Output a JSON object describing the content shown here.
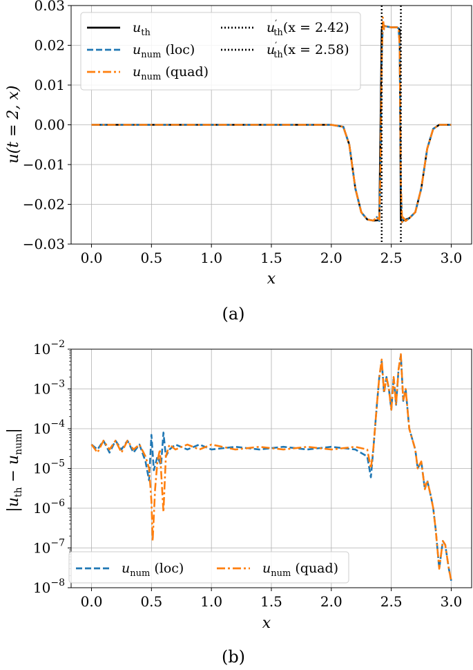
{
  "colors": {
    "th": "#000000",
    "loc": "#1f77b4",
    "quad": "#ff7f0e",
    "ref": "#000000"
  },
  "chart_data": [
    {
      "type": "line",
      "caption": "(a)",
      "xlabel": "x",
      "ylabel": "u(t = 2, x)",
      "xlim": [
        -0.17,
        3.17
      ],
      "ylim": [
        -0.03,
        0.03
      ],
      "xticks": [
        "0.0",
        "0.5",
        "1.0",
        "1.5",
        "2.0",
        "2.5",
        "3.0"
      ],
      "xtick_values": [
        0,
        0.5,
        1,
        1.5,
        2,
        2.5,
        3
      ],
      "yticks": [
        "0.03",
        "0.02",
        "0.01",
        "0.00",
        "−0.01",
        "−0.02",
        "−0.03"
      ],
      "ytick_values": [
        0.03,
        0.02,
        0.01,
        0,
        -0.01,
        -0.02,
        -0.03
      ],
      "grid": true,
      "legend_position": "top-left",
      "series": [
        {
          "name": "u_th",
          "label_main": "u",
          "label_sub": "th",
          "label_suffix": "",
          "style": "solid",
          "color_key": "th",
          "x": [
            0,
            0.5,
            1.0,
            1.5,
            2.0,
            2.1,
            2.15,
            2.2,
            2.25,
            2.3,
            2.35,
            2.4,
            2.42,
            2.43,
            2.45,
            2.5,
            2.55,
            2.57,
            2.58,
            2.6,
            2.65,
            2.7,
            2.75,
            2.8,
            2.85,
            2.9,
            3.0
          ],
          "y": [
            0,
            0,
            0,
            0,
            0,
            -0.0005,
            -0.005,
            -0.016,
            -0.022,
            -0.0238,
            -0.0241,
            -0.024,
            0.024,
            0.025,
            0.0248,
            0.0245,
            0.0245,
            0.024,
            -0.024,
            -0.0241,
            -0.0235,
            -0.022,
            -0.016,
            -0.006,
            -0.001,
            0,
            0
          ]
        },
        {
          "name": "u_num (loc)",
          "label_main": "u",
          "label_sub": "num",
          "label_suffix": " (loc)",
          "style": "dashed",
          "color_key": "loc",
          "x": [
            0,
            0.5,
            1.0,
            1.5,
            2.0,
            2.1,
            2.15,
            2.2,
            2.25,
            2.3,
            2.35,
            2.38,
            2.4,
            2.41,
            2.42,
            2.43,
            2.44,
            2.45,
            2.5,
            2.55,
            2.56,
            2.57,
            2.58,
            2.59,
            2.6,
            2.62,
            2.65,
            2.7,
            2.75,
            2.8,
            2.85,
            2.9,
            3.0
          ],
          "y": [
            0,
            0,
            0,
            0,
            0,
            -0.0005,
            -0.005,
            -0.016,
            -0.022,
            -0.0238,
            -0.0241,
            -0.0232,
            -0.0242,
            -0.012,
            0.016,
            0.026,
            0.024,
            0.0248,
            0.0245,
            0.0245,
            0.0243,
            0.02,
            -0.015,
            -0.0245,
            -0.0233,
            -0.0242,
            -0.0235,
            -0.022,
            -0.016,
            -0.006,
            -0.001,
            0,
            0
          ]
        },
        {
          "name": "u_num (quad)",
          "label_main": "u",
          "label_sub": "num",
          "label_suffix": " (quad)",
          "style": "dashdot",
          "color_key": "quad",
          "x": [
            0,
            0.5,
            1.0,
            1.5,
            2.0,
            2.1,
            2.15,
            2.2,
            2.25,
            2.3,
            2.35,
            2.38,
            2.4,
            2.41,
            2.42,
            2.43,
            2.44,
            2.45,
            2.5,
            2.55,
            2.56,
            2.57,
            2.58,
            2.59,
            2.6,
            2.62,
            2.65,
            2.7,
            2.75,
            2.8,
            2.85,
            2.9,
            3.0
          ],
          "y": [
            0,
            0,
            0,
            0,
            0,
            -0.0005,
            -0.005,
            -0.016,
            -0.022,
            -0.0238,
            -0.0241,
            -0.0232,
            -0.0242,
            -0.012,
            0.016,
            0.027,
            0.024,
            0.0248,
            0.0245,
            0.0245,
            0.0243,
            0.02,
            -0.015,
            -0.0245,
            -0.0233,
            -0.0242,
            -0.0235,
            -0.022,
            -0.016,
            -0.006,
            -0.001,
            0,
            0
          ]
        }
      ],
      "vlines": [
        {
          "name": "u'_th(x = 2.42)",
          "label_main": "u",
          "label_sub": "th",
          "label_suffix": "(x = 2.42)",
          "x": 2.42
        },
        {
          "name": "u'_th(x = 2.58)",
          "label_main": "u",
          "label_sub": "th",
          "label_suffix": "(x = 2.58)",
          "x": 2.58
        }
      ]
    },
    {
      "type": "line",
      "caption": "(b)",
      "xlabel": "x",
      "ylabel": "|u_th − u_num|",
      "ylabel_parts": {
        "a": "u",
        "a_sub": "th",
        "minus": " − ",
        "b": "u",
        "b_sub": "num"
      },
      "yscale": "log",
      "xlim": [
        -0.17,
        3.17
      ],
      "ylim": [
        1e-08,
        0.01
      ],
      "xticks": [
        "0.0",
        "0.5",
        "1.0",
        "1.5",
        "2.0",
        "2.5",
        "3.0"
      ],
      "xtick_values": [
        0,
        0.5,
        1,
        1.5,
        2,
        2.5,
        3
      ],
      "yticks": [
        "10",
        "10",
        "10",
        "10",
        "10",
        "10",
        "10"
      ],
      "ytick_exponents": [
        "−2",
        "−3",
        "−4",
        "−5",
        "−6",
        "−7",
        "−8"
      ],
      "ytick_values": [
        0.01,
        0.001,
        0.0001,
        1e-05,
        1e-06,
        1e-07,
        1e-08
      ],
      "grid": true,
      "legend_position": "bottom-left",
      "series": [
        {
          "name": "u_num (loc)",
          "label_main": "u",
          "label_sub": "num",
          "label_suffix": " (loc)",
          "style": "dashed",
          "color_key": "loc",
          "x": [
            0,
            0.05,
            0.1,
            0.15,
            0.2,
            0.25,
            0.3,
            0.35,
            0.4,
            0.45,
            0.48,
            0.5,
            0.52,
            0.55,
            0.58,
            0.6,
            0.62,
            0.65,
            0.7,
            0.8,
            0.9,
            1.0,
            1.2,
            1.4,
            1.6,
            1.8,
            2.0,
            2.2,
            2.3,
            2.33,
            2.35,
            2.38,
            2.4,
            2.42,
            2.44,
            2.46,
            2.48,
            2.5,
            2.52,
            2.54,
            2.56,
            2.58,
            2.6,
            2.62,
            2.65,
            2.7,
            2.72,
            2.75,
            2.78,
            2.8,
            2.83,
            2.85,
            2.87,
            2.9,
            2.93,
            2.95,
            2.98,
            3.0
          ],
          "y": [
            4e-05,
            3e-05,
            5e-05,
            2.5e-05,
            5e-05,
            3e-05,
            5e-05,
            2.5e-05,
            4e-05,
            1.5e-05,
            5e-06,
            7e-05,
            9e-06,
            2e-05,
            1.2e-05,
            8e-05,
            2e-05,
            3e-05,
            4e-05,
            3e-05,
            4e-05,
            3e-05,
            3.5e-05,
            3e-05,
            3.5e-05,
            3e-05,
            3.5e-05,
            3e-05,
            2e-05,
            6e-06,
            3e-05,
            0.0004,
            0.002,
            0.005,
            0.0008,
            0.002,
            0.001,
            0.0003,
            0.002,
            0.0004,
            0.003,
            0.007,
            0.0005,
            0.001,
            0.0001,
            3e-05,
            1e-05,
            1.5e-05,
            3e-06,
            5e-06,
            2e-06,
            1e-06,
            3e-07,
            3e-08,
            1.5e-07,
            1.2e-07,
            3e-08,
            1.5e-08
          ]
        },
        {
          "name": "u_num (quad)",
          "label_main": "u",
          "label_sub": "num",
          "label_suffix": " (quad)",
          "style": "dashdot",
          "color_key": "quad",
          "x": [
            0,
            0.05,
            0.1,
            0.15,
            0.2,
            0.25,
            0.3,
            0.35,
            0.4,
            0.45,
            0.48,
            0.5,
            0.51,
            0.53,
            0.55,
            0.57,
            0.6,
            0.62,
            0.65,
            0.7,
            0.8,
            0.9,
            1.0,
            1.2,
            1.4,
            1.6,
            1.8,
            2.0,
            2.2,
            2.3,
            2.33,
            2.35,
            2.38,
            2.4,
            2.42,
            2.44,
            2.46,
            2.48,
            2.5,
            2.52,
            2.54,
            2.56,
            2.58,
            2.6,
            2.62,
            2.65,
            2.7,
            2.72,
            2.75,
            2.78,
            2.8,
            2.83,
            2.85,
            2.87,
            2.9,
            2.93,
            2.95,
            2.98,
            3.0
          ],
          "y": [
            4e-05,
            2.5e-05,
            5e-05,
            3e-05,
            5e-05,
            2.5e-05,
            5e-05,
            3e-05,
            4e-05,
            2e-05,
            1e-05,
            1.5e-06,
            1.5e-07,
            3e-06,
            1.5e-05,
            3e-05,
            8e-07,
            2e-05,
            4e-05,
            3e-05,
            4e-05,
            3e-05,
            4e-05,
            3e-05,
            3.5e-05,
            3e-05,
            3.5e-05,
            3e-05,
            3.5e-05,
            3e-05,
            1e-05,
            3e-05,
            0.0004,
            0.002,
            0.0055,
            0.0008,
            0.002,
            0.001,
            0.0003,
            0.002,
            0.0004,
            0.003,
            0.0075,
            0.0005,
            0.001,
            0.0001,
            3e-05,
            1e-05,
            1.5e-05,
            3e-06,
            5e-06,
            2e-06,
            1e-06,
            3e-07,
            3e-08,
            1.5e-07,
            1.2e-07,
            3e-08,
            1.5e-08
          ]
        }
      ]
    }
  ]
}
